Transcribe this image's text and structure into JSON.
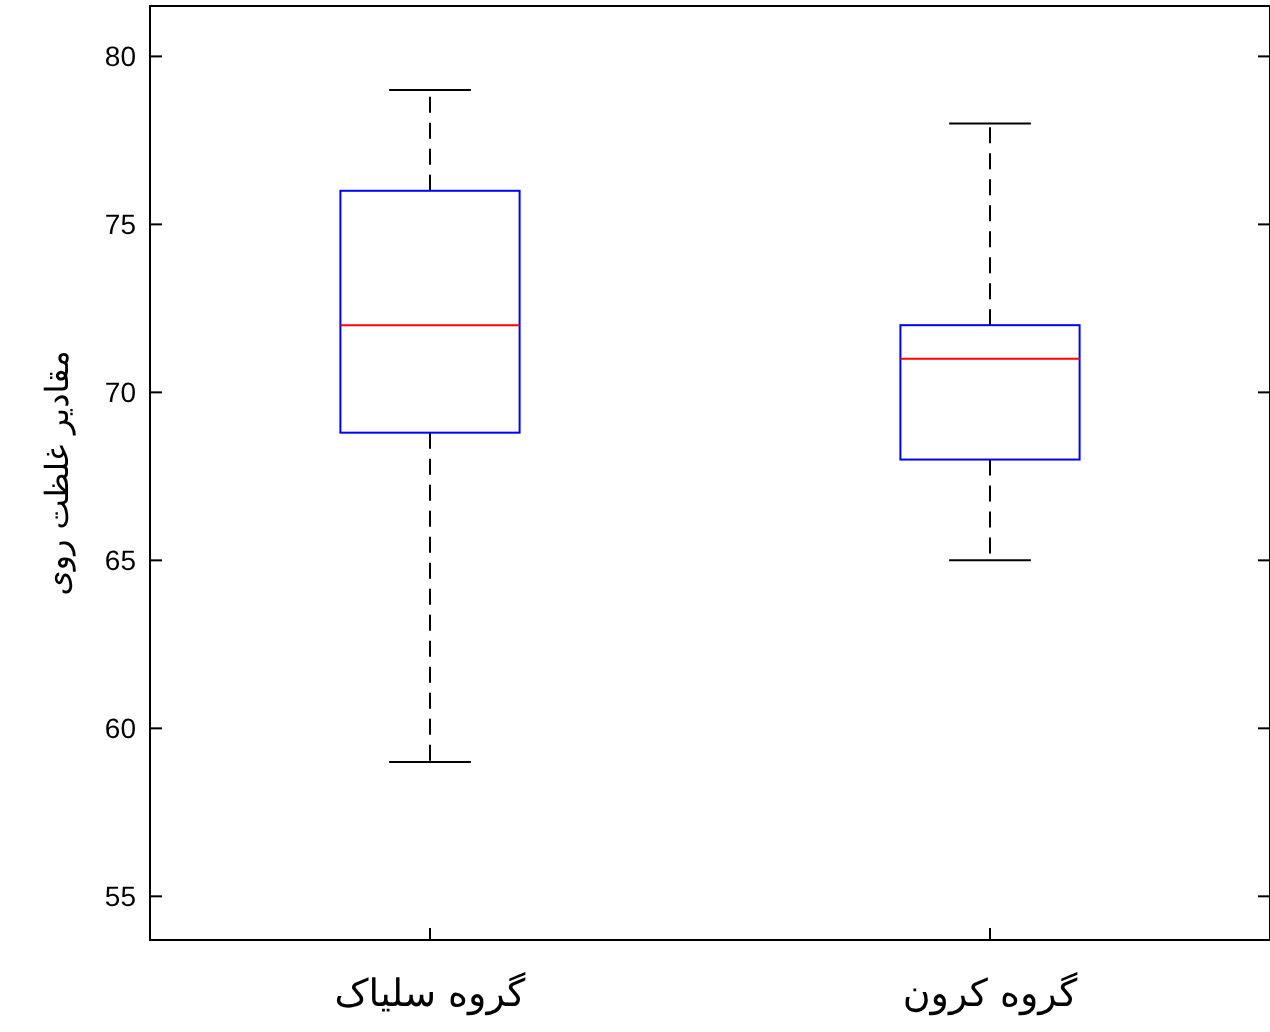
{
  "chart_data": {
    "type": "box",
    "ylabel": "مقادیر غلظت روی",
    "categories": [
      "گروه سلیاک",
      "گروه کرون"
    ],
    "series": [
      {
        "color": "#0000ff",
        "boxes": [
          {
            "low": 59,
            "q1": 68.8,
            "median": 72,
            "q3": 76,
            "high": 79
          },
          {
            "low": 65,
            "q1": 68,
            "median": 71,
            "q3": 72,
            "high": 78
          }
        ]
      }
    ],
    "ylim": [
      53.7,
      81.5
    ],
    "yticks": [
      55,
      60,
      65,
      70,
      75,
      80
    ]
  }
}
